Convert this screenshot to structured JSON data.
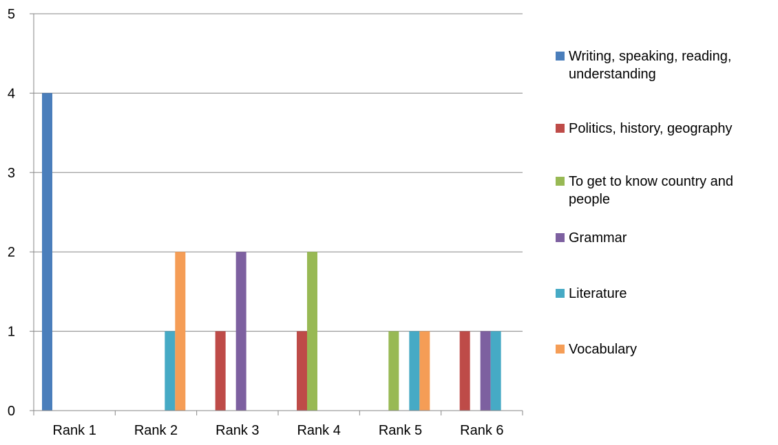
{
  "chart_data": {
    "type": "bar",
    "title": "",
    "xlabel": "",
    "ylabel": "",
    "categories": [
      "Rank 1",
      "Rank 2",
      "Rank 3",
      "Rank 4",
      "Rank 5",
      "Rank 6"
    ],
    "ylim": [
      0,
      5
    ],
    "yticks": [
      "0",
      "1",
      "2",
      "3",
      "4",
      "5"
    ],
    "grid": true,
    "legend_position": "right",
    "series": [
      {
        "name": "Writing, speaking, reading, understanding",
        "color": "#4a7ebb",
        "values": [
          4,
          0,
          0,
          0,
          0,
          0
        ]
      },
      {
        "name": "Politics, history, geography",
        "color": "#be4b48",
        "values": [
          0,
          0,
          1,
          1,
          0,
          1
        ]
      },
      {
        "name": "To get to know country and people",
        "color": "#98b954",
        "values": [
          0,
          0,
          0,
          2,
          1,
          0
        ]
      },
      {
        "name": "Grammar",
        "color": "#7d60a0",
        "values": [
          0,
          0,
          2,
          0,
          0,
          1
        ]
      },
      {
        "name": "Literature",
        "color": "#46aac5",
        "values": [
          0,
          1,
          0,
          0,
          1,
          1
        ]
      },
      {
        "name": "Vocabulary",
        "color": "#f59d56",
        "values": [
          0,
          2,
          0,
          0,
          1,
          0
        ]
      }
    ]
  }
}
